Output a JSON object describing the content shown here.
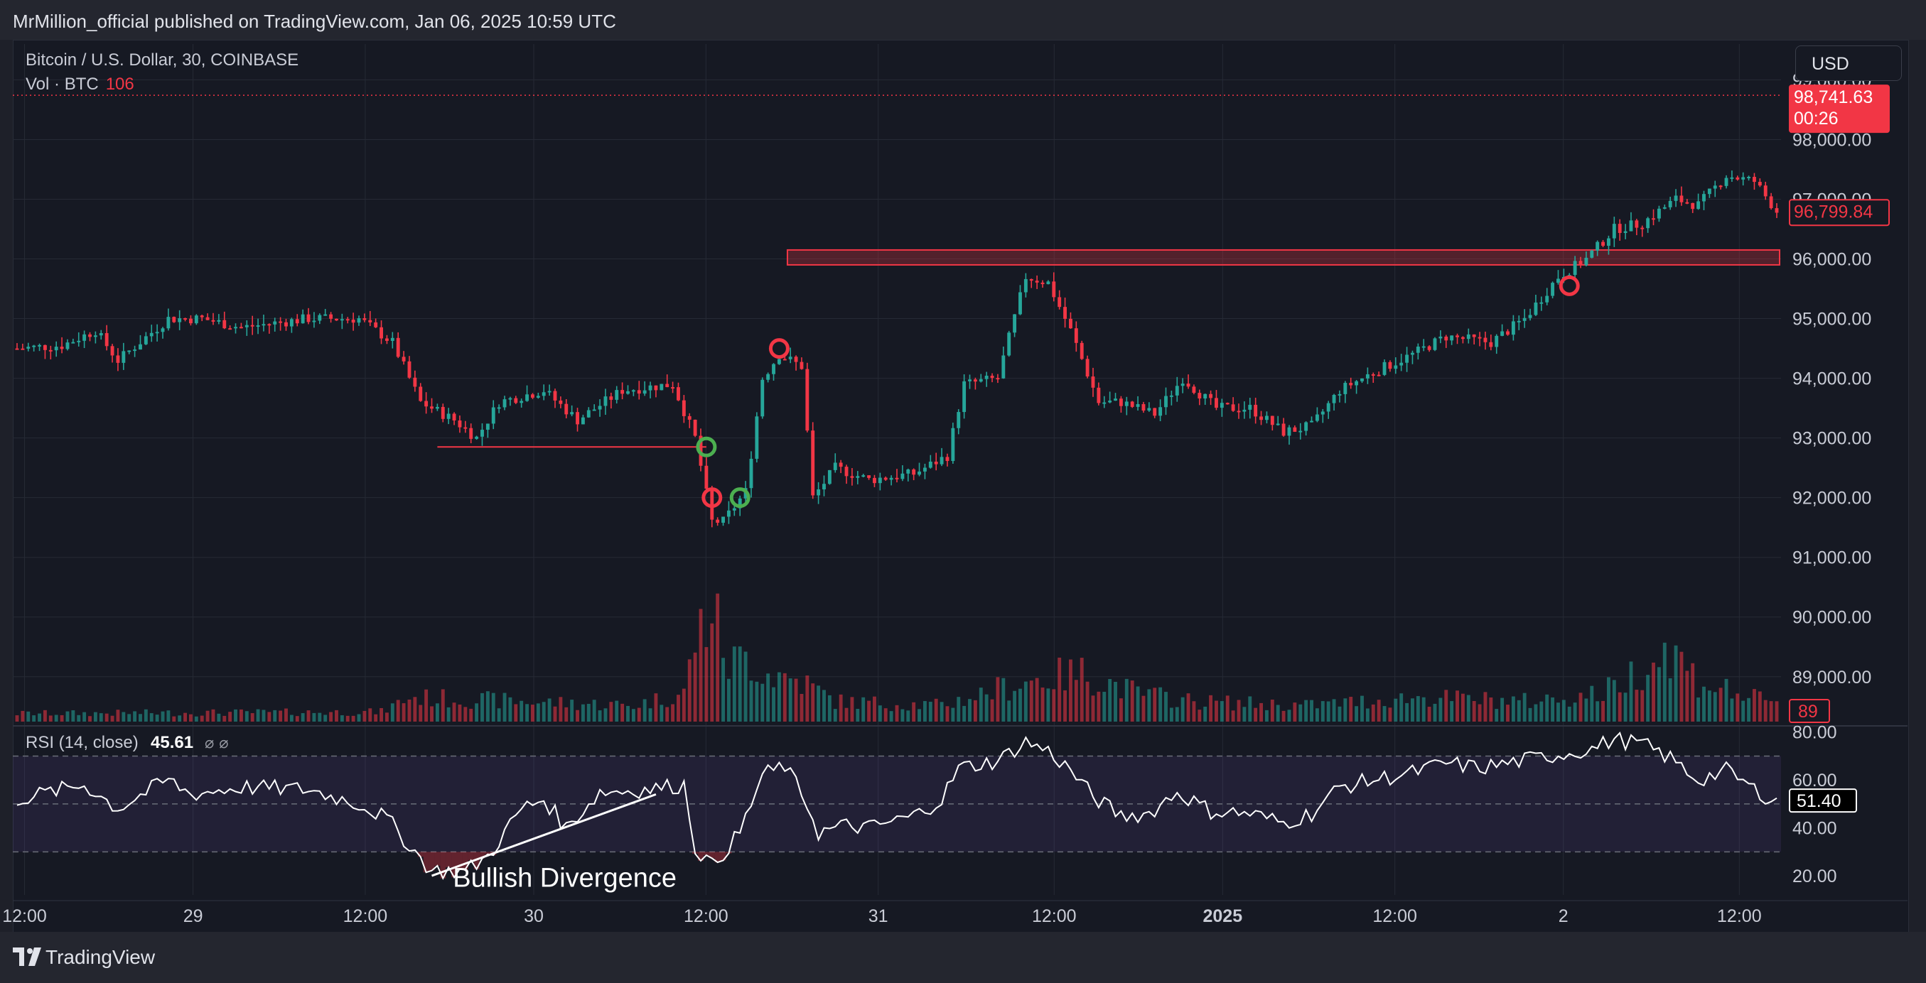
{
  "header": {
    "publish_line": "MrMillion_official published on TradingView.com, Jan 06, 2025 10:59 UTC"
  },
  "legend": {
    "symbol_line": "Bitcoin / U.S. Dollar, 30, COINBASE",
    "vol_label": "Vol · BTC",
    "vol_value": "106"
  },
  "currency": "USD",
  "footer": {
    "brand": "TradingView"
  },
  "colors": {
    "background": "#161923",
    "up": "#26a69a",
    "down": "#f23645",
    "rsi_line": "#ffffff",
    "rsi_band": "#7e57c2",
    "zone": "#f23645",
    "grid": "#262a35"
  },
  "chart_data": [
    {
      "type": "candlestick",
      "title": "Bitcoin / U.S. Dollar, 30, COINBASE",
      "ylim": [
        88200,
        99600
      ],
      "y_ticks": [
        "99,000.00",
        "98,000.00",
        "97,000.00",
        "96,000.00",
        "95,000.00",
        "94,000.00",
        "93,000.00",
        "92,000.00",
        "91,000.00",
        "90,000.00",
        "89,000.00"
      ],
      "x_ticks": [
        "12:00",
        "29",
        "12:00",
        "30",
        "12:00",
        "31",
        "12:00",
        "2025",
        "12:00",
        "2",
        "12:00"
      ],
      "current_price_label": "98,741.63",
      "countdown_label": "00:26",
      "last_price_label": "96,799.84",
      "volume_label": "89",
      "price_path": [
        [
          0,
          94500
        ],
        [
          8,
          94550
        ],
        [
          14,
          94800
        ],
        [
          18,
          94300
        ],
        [
          27,
          95000
        ],
        [
          33,
          95000
        ],
        [
          40,
          94850
        ],
        [
          52,
          95000
        ],
        [
          61,
          95000
        ],
        [
          67,
          94600
        ],
        [
          72,
          93600
        ],
        [
          78,
          93300
        ],
        [
          82,
          93000
        ],
        [
          86,
          93600
        ],
        [
          94,
          93800
        ],
        [
          100,
          93300
        ],
        [
          108,
          93800
        ],
        [
          117,
          93900
        ],
        [
          121,
          93000
        ],
        [
          124,
          91600
        ],
        [
          126,
          91600
        ],
        [
          130,
          92100
        ],
        [
          133,
          94000
        ],
        [
          136,
          94400
        ],
        [
          140,
          94200
        ],
        [
          142,
          92000
        ],
        [
          146,
          92500
        ],
        [
          152,
          92300
        ],
        [
          160,
          92400
        ],
        [
          166,
          92700
        ],
        [
          169,
          93900
        ],
        [
          175,
          94000
        ],
        [
          180,
          95700
        ],
        [
          184,
          95600
        ],
        [
          188,
          94800
        ],
        [
          193,
          93600
        ],
        [
          197,
          93600
        ],
        [
          203,
          93400
        ],
        [
          208,
          94000
        ],
        [
          214,
          93500
        ],
        [
          220,
          93500
        ],
        [
          226,
          93100
        ],
        [
          231,
          93200
        ],
        [
          236,
          93800
        ],
        [
          242,
          94100
        ],
        [
          249,
          94400
        ],
        [
          255,
          94700
        ],
        [
          263,
          94600
        ],
        [
          269,
          95000
        ],
        [
          275,
          95700
        ],
        [
          280,
          96000
        ],
        [
          285,
          96500
        ],
        [
          290,
          96600
        ],
        [
          296,
          97000
        ],
        [
          300,
          96900
        ],
        [
          305,
          97400
        ],
        [
          310,
          97300
        ],
        [
          314,
          96800
        ]
      ],
      "volume_profile": [
        [
          0,
          1.0
        ],
        [
          65,
          1.2
        ],
        [
          70,
          3.0
        ],
        [
          110,
          2.0
        ],
        [
          119,
          3.5
        ],
        [
          121,
          10.0
        ],
        [
          124,
          14.0
        ],
        [
          127,
          7.0
        ],
        [
          130,
          8.0
        ],
        [
          134,
          6.0
        ],
        [
          140,
          5.0
        ],
        [
          146,
          2.5
        ],
        [
          165,
          2.0
        ],
        [
          180,
          5.0
        ],
        [
          190,
          6.0
        ],
        [
          200,
          3.5
        ],
        [
          210,
          2.5
        ],
        [
          230,
          2.0
        ],
        [
          250,
          3.0
        ],
        [
          270,
          2.5
        ],
        [
          283,
          3.5
        ],
        [
          295,
          9.0
        ],
        [
          300,
          5.0
        ],
        [
          314,
          2.0
        ]
      ],
      "annotations": {
        "horizontal_line": {
          "price": 92850
        },
        "resistance_zone": {
          "from": 95900,
          "to": 96150
        },
        "red_circles": [
          [
            124,
            92000
          ],
          [
            136,
            94500
          ],
          [
            277,
            95550
          ]
        ],
        "green_circles": [
          [
            123,
            92850
          ],
          [
            129,
            92000
          ]
        ]
      }
    },
    {
      "type": "line",
      "title": "RSI (14, close)",
      "value_label": "45.61",
      "last_value_label": "51.40",
      "ylim": [
        12,
        82
      ],
      "y_ticks": [
        "80.00",
        "60.00",
        "40.00",
        "20.00"
      ],
      "band": [
        30,
        70
      ],
      "midline": 50,
      "series": [
        {
          "values_path": [
            [
              0,
              52
            ],
            [
              12,
              58
            ],
            [
              18,
              48
            ],
            [
              23,
              55
            ],
            [
              27,
              60
            ],
            [
              31,
              54
            ],
            [
              40,
              57
            ],
            [
              52,
              56
            ],
            [
              61,
              50
            ],
            [
              66,
              44
            ],
            [
              71,
              30
            ],
            [
              74,
              22
            ],
            [
              80,
              22
            ],
            [
              84,
              28
            ],
            [
              90,
              48
            ],
            [
              94,
              52
            ],
            [
              98,
              40
            ],
            [
              104,
              55
            ],
            [
              112,
              56
            ],
            [
              119,
              58
            ],
            [
              121,
              32
            ],
            [
              124,
              24
            ],
            [
              129,
              38
            ],
            [
              133,
              62
            ],
            [
              137,
              66
            ],
            [
              141,
              50
            ],
            [
              143,
              38
            ],
            [
              148,
              41
            ],
            [
              152,
              40
            ],
            [
              160,
              45
            ],
            [
              165,
              52
            ],
            [
              168,
              65
            ],
            [
              175,
              68
            ],
            [
              180,
              76
            ],
            [
              184,
              72
            ],
            [
              188,
              64
            ],
            [
              192,
              53
            ],
            [
              197,
              45
            ],
            [
              202,
              46
            ],
            [
              207,
              55
            ],
            [
              213,
              47
            ],
            [
              220,
              46
            ],
            [
              226,
              42
            ],
            [
              231,
              46
            ],
            [
              236,
              57
            ],
            [
              242,
              60
            ],
            [
              249,
              63
            ],
            [
              255,
              67
            ],
            [
              261,
              65
            ],
            [
              266,
              67
            ],
            [
              271,
              69
            ],
            [
              276,
              71
            ],
            [
              281,
              73
            ],
            [
              285,
              77
            ],
            [
              290,
              75
            ],
            [
              295,
              69
            ],
            [
              300,
              60
            ],
            [
              305,
              64
            ],
            [
              310,
              56
            ],
            [
              314,
              51
            ]
          ]
        }
      ],
      "annotations": {
        "trendline": [
          [
            74,
            20
          ],
          [
            114,
            54
          ]
        ],
        "label": "Bullish Divergence"
      }
    }
  ]
}
